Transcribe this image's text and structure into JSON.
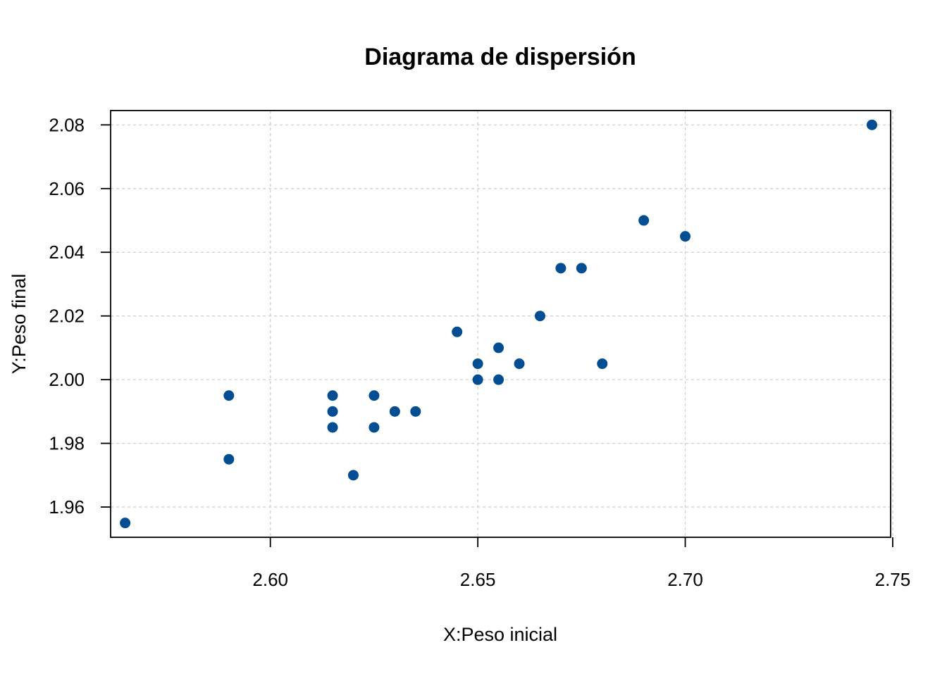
{
  "chart_data": {
    "type": "scatter",
    "title": "Diagrama de dispersión",
    "xlabel": "X:Peso inicial",
    "ylabel": "Y:Peso final",
    "xlim": [
      2.5615,
      2.7495
    ],
    "ylim": [
      1.9505,
      2.0845
    ],
    "xticks": [
      2.6,
      2.65,
      2.7,
      2.75
    ],
    "xtick_labels": [
      "2.60",
      "2.65",
      "2.70",
      "2.75"
    ],
    "yticks": [
      1.96,
      1.98,
      2.0,
      2.02,
      2.04,
      2.06,
      2.08
    ],
    "ytick_labels": [
      "1.96",
      "1.98",
      "2.00",
      "2.02",
      "2.04",
      "2.06",
      "2.08"
    ],
    "grid": true,
    "point_color": "#034e92",
    "points": [
      {
        "x": 2.565,
        "y": 1.955
      },
      {
        "x": 2.59,
        "y": 1.995
      },
      {
        "x": 2.59,
        "y": 1.975
      },
      {
        "x": 2.615,
        "y": 1.995
      },
      {
        "x": 2.615,
        "y": 1.99
      },
      {
        "x": 2.615,
        "y": 1.985
      },
      {
        "x": 2.62,
        "y": 1.97
      },
      {
        "x": 2.625,
        "y": 1.995
      },
      {
        "x": 2.625,
        "y": 1.985
      },
      {
        "x": 2.63,
        "y": 1.99
      },
      {
        "x": 2.635,
        "y": 1.99
      },
      {
        "x": 2.645,
        "y": 2.015
      },
      {
        "x": 2.65,
        "y": 2.005
      },
      {
        "x": 2.65,
        "y": 2.0
      },
      {
        "x": 2.655,
        "y": 2.01
      },
      {
        "x": 2.655,
        "y": 2.0
      },
      {
        "x": 2.66,
        "y": 2.005
      },
      {
        "x": 2.665,
        "y": 2.02
      },
      {
        "x": 2.67,
        "y": 2.035
      },
      {
        "x": 2.675,
        "y": 2.035
      },
      {
        "x": 2.68,
        "y": 2.005
      },
      {
        "x": 2.69,
        "y": 2.05
      },
      {
        "x": 2.7,
        "y": 2.045
      },
      {
        "x": 2.745,
        "y": 2.08
      }
    ]
  }
}
